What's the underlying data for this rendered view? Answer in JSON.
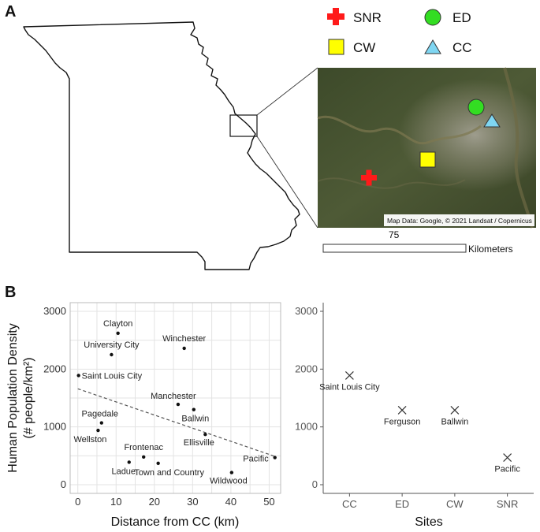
{
  "panels": {
    "a": "A",
    "b": "B"
  },
  "legend": [
    {
      "label": "SNR",
      "shape": "red-cross-icon",
      "color": "#ff1a1a"
    },
    {
      "label": "ED",
      "shape": "green-circle-icon",
      "color": "#33dd22"
    },
    {
      "label": "CW",
      "shape": "yellow-square-icon",
      "color": "#ffff00"
    },
    {
      "label": "CC",
      "shape": "cyan-triangle-icon",
      "color": "#7fd6f2"
    }
  ],
  "map": {
    "attribution": "Map Data: Google, © 2021 Landsat / Copernicus",
    "scale_value": "75",
    "scale_unit": "Kilometers"
  },
  "chart_data": [
    {
      "type": "scatter",
      "xlabel": "Distance from CC (km)",
      "ylabel": "Human Population Density",
      "ylabel2": "(# people/km²)",
      "xlim": [
        -2,
        53
      ],
      "ylim": [
        -150,
        3150
      ],
      "xticks": [
        0,
        10,
        20,
        30,
        40,
        50
      ],
      "yticks": [
        0,
        1000,
        2000,
        3000
      ],
      "grid": true,
      "trendline": {
        "x": [
          0,
          51.5
        ],
        "y": [
          1660,
          490
        ],
        "style": "dashed"
      },
      "points": [
        {
          "label": "Clayton",
          "x": 10.5,
          "y": 2620
        },
        {
          "label": "University City",
          "x": 8.8,
          "y": 2250
        },
        {
          "label": "Winchester",
          "x": 27.8,
          "y": 2360
        },
        {
          "label": "Saint Louis City",
          "x": 0.2,
          "y": 1890
        },
        {
          "label": "Manchester",
          "x": 26.2,
          "y": 1390
        },
        {
          "label": "Ballwin",
          "x": 30.3,
          "y": 1300
        },
        {
          "label": "Pagedale",
          "x": 6.2,
          "y": 1070
        },
        {
          "label": "Wellston",
          "x": 5.3,
          "y": 940
        },
        {
          "label": "Ellisville",
          "x": 33.3,
          "y": 870
        },
        {
          "label": "Pacific",
          "x": 51.5,
          "y": 470
        },
        {
          "label": "Frontenac",
          "x": 17.2,
          "y": 480
        },
        {
          "label": "Ladue",
          "x": 13.4,
          "y": 390
        },
        {
          "label": "Town and Country",
          "x": 21.0,
          "y": 370
        },
        {
          "label": "Wildwood",
          "x": 40.2,
          "y": 210
        }
      ]
    },
    {
      "type": "scatter",
      "xlabel": "Sites",
      "categories": [
        "CC",
        "ED",
        "CW",
        "SNR"
      ],
      "ylim": [
        -150,
        3150
      ],
      "yticks": [
        0,
        1000,
        2000,
        3000
      ],
      "grid": false,
      "points": [
        {
          "category": "CC",
          "y": 1890,
          "label": "Saint Louis City"
        },
        {
          "category": "ED",
          "y": 1290,
          "label": "Ferguson"
        },
        {
          "category": "CW",
          "y": 1290,
          "label": "Ballwin"
        },
        {
          "category": "SNR",
          "y": 470,
          "label": "Pacific"
        }
      ]
    }
  ]
}
